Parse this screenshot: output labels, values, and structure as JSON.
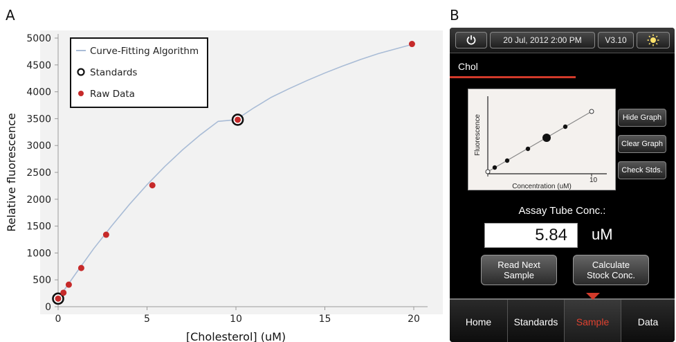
{
  "panels": {
    "a": "A",
    "b": "B"
  },
  "chart_data": {
    "type": "scatter",
    "xlabel": "[Cholesterol] (uM)",
    "ylabel": "Relative fluorescence",
    "xlim": [
      0,
      20
    ],
    "ylim": [
      0,
      5000
    ],
    "x_ticks": [
      0,
      5,
      10,
      15,
      20
    ],
    "y_ticks": [
      0,
      500,
      1000,
      1500,
      2000,
      2500,
      3000,
      3500,
      4000,
      4500,
      5000
    ],
    "legend_position": "top-left",
    "grid": false,
    "series": [
      {
        "name": "Curve-Fitting Algorithm",
        "kind": "line",
        "color": "#a9bcd6",
        "x": [
          0,
          1,
          2,
          3,
          4,
          5,
          6,
          7,
          8,
          9,
          10,
          11,
          12,
          13,
          14,
          15,
          16,
          17,
          18,
          19,
          20
        ],
        "y": [
          150,
          620,
          1080,
          1500,
          1900,
          2270,
          2610,
          2920,
          3200,
          3450,
          3480,
          3700,
          3900,
          4060,
          4210,
          4350,
          4480,
          4600,
          4710,
          4800,
          4890
        ]
      },
      {
        "name": "Standards",
        "kind": "marker-ring",
        "color": "#111111",
        "x": [
          0,
          10.1
        ],
        "y": [
          150,
          3480
        ]
      },
      {
        "name": "Raw Data",
        "kind": "marker-dot",
        "color": "#c62a2a",
        "x": [
          0,
          0.3,
          0.6,
          1.3,
          2.7,
          5.3,
          10.1,
          19.9
        ],
        "y": [
          150,
          260,
          410,
          720,
          1340,
          2260,
          3480,
          4890
        ]
      }
    ]
  },
  "device": {
    "topbar": {
      "power_icon": "power-icon",
      "datetime": "20 Jul, 2012 2:00 PM",
      "version": "V3.10",
      "brightness_icon": "brightness-icon"
    },
    "tab_label": "Chol",
    "mini_graph": {
      "ylabel": "Fluorescence",
      "xlabel": "Concentration (uM)",
      "x_ticks": [
        "0",
        "10"
      ]
    },
    "side_buttons": [
      "Hide Graph",
      "Clear Graph",
      "Check Stds."
    ],
    "assay_label": "Assay Tube Conc.:",
    "conc_value": "5.84",
    "conc_unit": "uM",
    "read_next": [
      "Read Next",
      "Sample"
    ],
    "calculate": [
      "Calculate",
      "Stock Conc."
    ],
    "nav": [
      "Home",
      "Standards",
      "Sample",
      "Data"
    ],
    "active_nav": "Sample",
    "accent_color": "#d23a2a"
  }
}
